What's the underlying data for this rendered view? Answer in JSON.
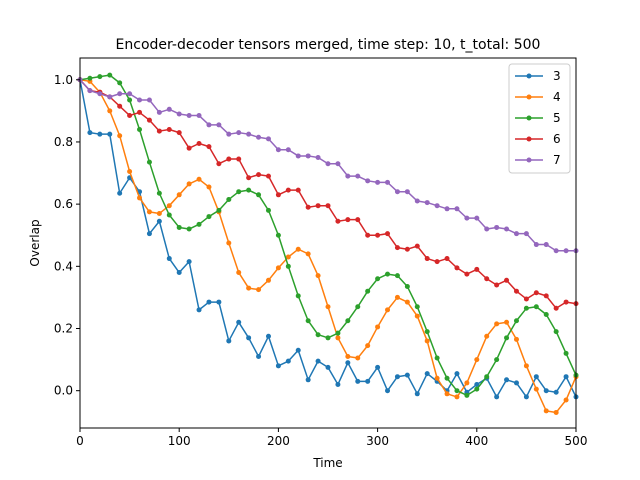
{
  "chart_data": {
    "type": "line",
    "title": "Encoder-decoder tensors merged, time step: 10, t_total: 500",
    "xlabel": "Time",
    "ylabel": "Overlap",
    "xlim": [
      0,
      500
    ],
    "ylim": [
      -0.12,
      1.07
    ],
    "xticks": [
      0,
      100,
      200,
      300,
      400,
      500
    ],
    "yticks": [
      0.0,
      0.2,
      0.4,
      0.6,
      0.8,
      1.0
    ],
    "legend": "top-right",
    "grid": false,
    "x": [
      0,
      10,
      20,
      30,
      40,
      50,
      60,
      70,
      80,
      90,
      100,
      110,
      120,
      130,
      140,
      150,
      160,
      170,
      180,
      190,
      200,
      210,
      220,
      230,
      240,
      250,
      260,
      270,
      280,
      290,
      300,
      310,
      320,
      330,
      340,
      350,
      360,
      370,
      380,
      390,
      400,
      410,
      420,
      430,
      440,
      450,
      460,
      470,
      480,
      490,
      500
    ],
    "series": [
      {
        "name": "3",
        "color": "#1f77b4",
        "values": [
          1.0,
          0.83,
          0.825,
          0.825,
          0.635,
          0.685,
          0.64,
          0.505,
          0.545,
          0.425,
          0.38,
          0.415,
          0.26,
          0.285,
          0.285,
          0.16,
          0.22,
          0.17,
          0.11,
          0.175,
          0.08,
          0.095,
          0.13,
          0.035,
          0.095,
          0.075,
          0.02,
          0.09,
          0.03,
          0.03,
          0.075,
          0.0,
          0.045,
          0.05,
          -0.01,
          0.055,
          0.03,
          0.0,
          0.055,
          -0.005,
          0.02,
          0.04,
          -0.02,
          0.035,
          0.025,
          -0.02,
          0.045,
          0.0,
          -0.005,
          0.045,
          -0.02
        ]
      },
      {
        "name": "4",
        "color": "#ff7f0e",
        "values": [
          1.0,
          0.995,
          0.96,
          0.9,
          0.82,
          0.705,
          0.62,
          0.575,
          0.57,
          0.595,
          0.63,
          0.665,
          0.68,
          0.655,
          0.575,
          0.475,
          0.38,
          0.33,
          0.325,
          0.355,
          0.395,
          0.43,
          0.455,
          0.44,
          0.37,
          0.27,
          0.17,
          0.11,
          0.105,
          0.145,
          0.205,
          0.26,
          0.3,
          0.285,
          0.24,
          0.16,
          0.04,
          -0.01,
          -0.02,
          0.025,
          0.1,
          0.175,
          0.215,
          0.22,
          0.165,
          0.08,
          0.005,
          -0.065,
          -0.07,
          -0.03,
          0.045
        ]
      },
      {
        "name": "5",
        "color": "#2ca02c",
        "values": [
          1.0,
          1.005,
          1.01,
          1.015,
          0.99,
          0.935,
          0.84,
          0.735,
          0.635,
          0.565,
          0.525,
          0.52,
          0.535,
          0.56,
          0.58,
          0.615,
          0.64,
          0.645,
          0.63,
          0.58,
          0.5,
          0.4,
          0.305,
          0.225,
          0.18,
          0.17,
          0.185,
          0.225,
          0.27,
          0.32,
          0.36,
          0.375,
          0.37,
          0.335,
          0.27,
          0.19,
          0.105,
          0.04,
          0.0,
          -0.015,
          0.005,
          0.045,
          0.1,
          0.17,
          0.225,
          0.265,
          0.27,
          0.245,
          0.19,
          0.12,
          0.05
        ]
      },
      {
        "name": "6",
        "color": "#d62728",
        "values": [
          1.0,
          0.965,
          0.96,
          0.945,
          0.915,
          0.885,
          0.895,
          0.87,
          0.835,
          0.84,
          0.83,
          0.78,
          0.795,
          0.785,
          0.73,
          0.745,
          0.745,
          0.685,
          0.695,
          0.69,
          0.63,
          0.645,
          0.645,
          0.59,
          0.595,
          0.595,
          0.545,
          0.55,
          0.55,
          0.5,
          0.5,
          0.505,
          0.46,
          0.455,
          0.465,
          0.425,
          0.415,
          0.425,
          0.395,
          0.375,
          0.39,
          0.36,
          0.34,
          0.355,
          0.32,
          0.295,
          0.315,
          0.305,
          0.265,
          0.285,
          0.28
        ]
      },
      {
        "name": "7",
        "color": "#9467bd",
        "values": [
          1.0,
          0.965,
          0.955,
          0.945,
          0.955,
          0.955,
          0.935,
          0.935,
          0.895,
          0.905,
          0.89,
          0.885,
          0.885,
          0.855,
          0.855,
          0.825,
          0.83,
          0.825,
          0.815,
          0.81,
          0.775,
          0.775,
          0.755,
          0.755,
          0.75,
          0.73,
          0.73,
          0.69,
          0.69,
          0.675,
          0.67,
          0.67,
          0.64,
          0.64,
          0.61,
          0.605,
          0.595,
          0.585,
          0.585,
          0.555,
          0.555,
          0.52,
          0.525,
          0.52,
          0.505,
          0.505,
          0.47,
          0.47,
          0.45,
          0.45,
          0.45
        ]
      }
    ]
  }
}
